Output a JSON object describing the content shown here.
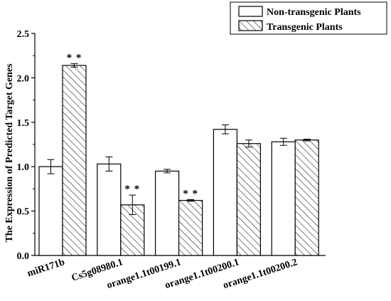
{
  "chart_data": {
    "type": "bar",
    "title": "",
    "xlabel": "",
    "ylabel": "The Expression of Predicted Target Genes",
    "ylim": [
      0,
      2.5
    ],
    "yticks": [
      "0.0",
      "0.5",
      "1.0",
      "1.5",
      "2.0",
      "2.5"
    ],
    "categories": [
      "miR171b",
      "Cs5g08980.1",
      "orange1.1t00199.1",
      "orange1.1t00200.1",
      "orange1.1t00200.2"
    ],
    "legend_position": "top-right",
    "series": [
      {
        "name": "Non-transgenic Plants",
        "fill": "plain",
        "values": [
          1.0,
          1.03,
          0.95,
          1.42,
          1.28
        ],
        "errors": [
          0.08,
          0.08,
          0.02,
          0.05,
          0.04
        ],
        "significance": [
          "",
          "",
          "",
          "",
          ""
        ]
      },
      {
        "name": "Transgenic Plants",
        "fill": "hatched",
        "values": [
          2.14,
          0.57,
          0.62,
          1.26,
          1.3
        ],
        "errors": [
          0.02,
          0.11,
          0.01,
          0.04,
          0.01
        ],
        "significance": [
          "* *",
          "* *",
          "* *",
          "",
          ""
        ]
      }
    ],
    "grid": false
  }
}
